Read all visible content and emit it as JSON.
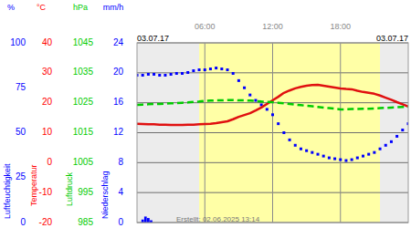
{
  "chart_data": {
    "type": "line",
    "date_labels": [
      "03.07.17",
      "03.07.17"
    ],
    "footer": "Erstellt: 02.06.2025 13:14",
    "x": [
      0,
      0.5,
      1,
      1.5,
      2,
      2.5,
      3,
      3.5,
      4,
      4.5,
      5,
      5.5,
      6,
      6.5,
      7,
      7.5,
      8,
      8.5,
      9,
      9.5,
      10,
      10.5,
      11,
      11.5,
      12,
      12.5,
      13,
      13.5,
      14,
      14.5,
      15,
      15.5,
      16,
      16.5,
      17,
      17.5,
      18,
      18.5,
      19,
      19.5,
      20,
      20.5,
      21,
      21.5,
      22,
      22.5,
      23,
      23.5,
      24
    ],
    "xlim": [
      0,
      24
    ],
    "xticks": [
      {
        "value": 6,
        "label": "06:00"
      },
      {
        "value": 12,
        "label": "12:00"
      },
      {
        "value": 18,
        "label": "18:00"
      }
    ],
    "daylight": [
      5.5,
      21.5
    ],
    "grid": true,
    "y_axes": [
      {
        "title": "Luftfeuchtigkeit",
        "unit": "%",
        "color": "#0000ff",
        "ylim": [
          0,
          100
        ],
        "yticks": [
          0,
          25,
          50,
          75,
          100
        ]
      },
      {
        "title": "Temperatur",
        "unit": "°C",
        "color": "#ff0000",
        "ylim": [
          -20,
          40
        ],
        "yticks": [
          -20,
          -10,
          0,
          10,
          20,
          30,
          40
        ]
      },
      {
        "title": "Luftdruck",
        "unit": "hPa",
        "color": "#00cc00",
        "ylim": [
          985,
          1045
        ],
        "yticks": [
          985,
          995,
          1005,
          1015,
          1025,
          1035,
          1045
        ]
      },
      {
        "title": "Niederschlag",
        "unit": "mm/h",
        "color": "#0000ff",
        "ylim": [
          0,
          24
        ],
        "yticks": [
          0,
          4,
          8,
          12,
          16,
          20,
          24
        ]
      }
    ],
    "series": [
      {
        "axis": 0,
        "type": "scatter",
        "marker": "square",
        "color": "#0000ff",
        "values": [
          82,
          82,
          82.5,
          82.5,
          82,
          82,
          82.5,
          83,
          83,
          83.5,
          84.5,
          85,
          85,
          85.5,
          86,
          85.5,
          85,
          83,
          79,
          75,
          71,
          68,
          65.5,
          63,
          60,
          55,
          50,
          46,
          43,
          41,
          40,
          39,
          38,
          37,
          36,
          35.5,
          35,
          34.5,
          35,
          36,
          37,
          38,
          39,
          41,
          43,
          45,
          48,
          51.5,
          55
        ]
      },
      {
        "axis": 1,
        "type": "line",
        "line_style": "solid",
        "color": "#e01010",
        "values": [
          13,
          12.9,
          12.8,
          12.8,
          12.7,
          12.7,
          12.6,
          12.6,
          12.6,
          12.7,
          12.7,
          12.8,
          12.9,
          13,
          13.2,
          13.5,
          13.8,
          14.5,
          15.3,
          15.9,
          16.5,
          17.4,
          18.4,
          19.6,
          20.8,
          22,
          23.3,
          24.1,
          24.8,
          25.3,
          25.7,
          25.9,
          26,
          25.7,
          25.4,
          25.1,
          24.8,
          24.6,
          24.5,
          24,
          23.6,
          23.3,
          23,
          22.4,
          21.7,
          21,
          20.2,
          19.5,
          18.7
        ]
      },
      {
        "axis": 2,
        "type": "line",
        "line_style": "dashed",
        "color": "#00cc00",
        "values": [
          1024.3,
          1024.4,
          1024.5,
          1024.6,
          1024.6,
          1024.7,
          1024.8,
          1024.9,
          1025,
          1025.1,
          1025.3,
          1025.4,
          1025.6,
          1025.7,
          1025.8,
          1025.8,
          1025.9,
          1025.9,
          1025.8,
          1025.8,
          1025.7,
          1025.6,
          1025.4,
          1025.3,
          1025.2,
          1025,
          1024.8,
          1024.6,
          1024.4,
          1024.2,
          1024,
          1023.8,
          1023.6,
          1023.4,
          1023.2,
          1023,
          1022.8,
          1022.8,
          1022.9,
          1022.9,
          1023,
          1023,
          1023.1,
          1023.2,
          1023.3,
          1023.4,
          1023.5,
          1023.6,
          1023.7
        ]
      },
      {
        "axis": 3,
        "type": "bar",
        "color": "#0000ff",
        "x": [
          0.5,
          0.75,
          1,
          1.25
        ],
        "values": [
          0.4,
          0.8,
          0.6,
          0.3
        ]
      }
    ]
  }
}
